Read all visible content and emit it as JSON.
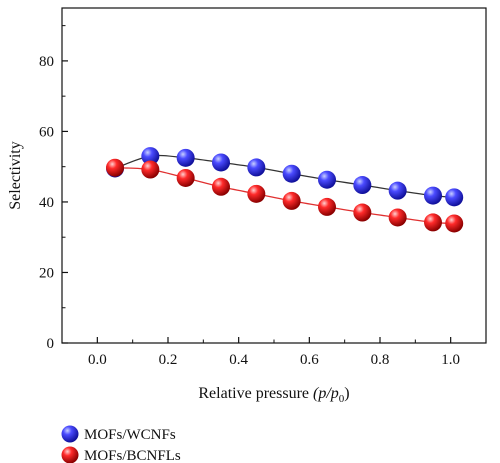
{
  "chart_data": {
    "type": "line",
    "title": "",
    "xlabel": "Relative pressure",
    "xlabel_var": "(p/p",
    "xlabel_sub": "0",
    "xlabel_close": ")",
    "ylabel": "Selectivity",
    "xlim": [
      -0.1,
      1.1
    ],
    "ylim": [
      0,
      95
    ],
    "xticks": [
      "0.0",
      "0.2",
      "0.4",
      "0.6",
      "0.8",
      "1.0"
    ],
    "yticks": [
      "0",
      "20",
      "40",
      "60",
      "80"
    ],
    "xtick_values": [
      0.0,
      0.2,
      0.4,
      0.6,
      0.8,
      1.0
    ],
    "ytick_values": [
      0,
      20,
      40,
      60,
      80
    ],
    "grid": false,
    "legend_position": "bottom-left",
    "series": [
      {
        "name": "MOFs/WCNFs",
        "color": "#2a2ae6",
        "line_color": "#333333",
        "x": [
          0.05,
          0.15,
          0.25,
          0.35,
          0.45,
          0.55,
          0.65,
          0.75,
          0.85,
          0.95,
          1.01
        ],
        "y": [
          49.5,
          53.0,
          52.5,
          51.2,
          49.8,
          48.0,
          46.3,
          44.8,
          43.2,
          41.8,
          41.3
        ]
      },
      {
        "name": "MOFs/BCNFLs",
        "color": "#e01010",
        "line_color": "#e03030",
        "x": [
          0.05,
          0.15,
          0.25,
          0.35,
          0.45,
          0.55,
          0.65,
          0.75,
          0.85,
          0.95,
          1.01
        ],
        "y": [
          49.7,
          49.2,
          46.8,
          44.3,
          42.3,
          40.3,
          38.6,
          37.0,
          35.6,
          34.2,
          33.9
        ]
      }
    ]
  }
}
